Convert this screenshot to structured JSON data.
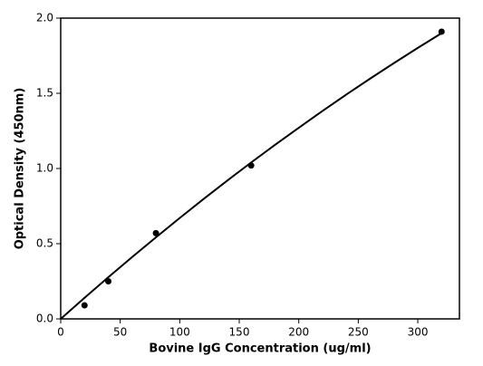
{
  "chart_data": {
    "type": "scatter",
    "xlabel": "Bovine IgG Concentration (ug/ml)",
    "ylabel": "Optical Density (450nm)",
    "x": [
      20,
      40,
      80,
      160,
      320
    ],
    "values": [
      0.09,
      0.25,
      0.57,
      1.02,
      1.91
    ],
    "color": "#000000",
    "fit": {
      "x": [
        0,
        20,
        40,
        60,
        80,
        100,
        120,
        140,
        160,
        180,
        200,
        220,
        240,
        260,
        280,
        300,
        320
      ],
      "values": [
        0,
        0.14,
        0.277,
        0.411,
        0.542,
        0.671,
        0.797,
        0.92,
        1.04,
        1.157,
        1.271,
        1.383,
        1.492,
        1.598,
        1.701,
        1.802,
        1.9
      ]
    },
    "xlim": [
      0,
      335
    ],
    "ylim": [
      0,
      2.0
    ],
    "xticks": [
      0,
      50,
      100,
      150,
      200,
      250,
      300
    ],
    "yticks": [
      {
        "value": 0,
        "label": "0.0"
      },
      0.5,
      {
        "value": 1,
        "label": "1.0"
      },
      1.5,
      {
        "value": 2,
        "label": "2.0"
      }
    ]
  }
}
